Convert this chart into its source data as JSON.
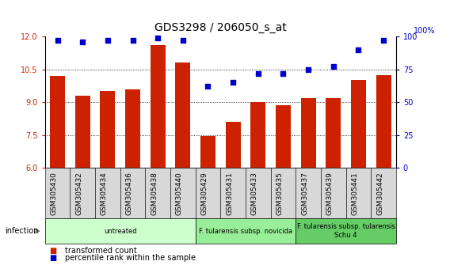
{
  "title": "GDS3298 / 206050_s_at",
  "samples": [
    "GSM305430",
    "GSM305432",
    "GSM305434",
    "GSM305436",
    "GSM305438",
    "GSM305440",
    "GSM305429",
    "GSM305431",
    "GSM305433",
    "GSM305435",
    "GSM305437",
    "GSM305439",
    "GSM305441",
    "GSM305442"
  ],
  "bar_values": [
    10.2,
    9.3,
    9.5,
    9.6,
    11.6,
    10.8,
    7.45,
    8.1,
    9.0,
    8.85,
    9.2,
    9.2,
    10.0,
    10.25
  ],
  "percentile_values": [
    97,
    96,
    97,
    97,
    99,
    97,
    62,
    65,
    72,
    72,
    75,
    77,
    90,
    97
  ],
  "bar_color": "#cc2200",
  "percentile_color": "#0000cc",
  "ylim_left": [
    6,
    12
  ],
  "ylim_right": [
    0,
    100
  ],
  "yticks_left": [
    6,
    7.5,
    9,
    10.5,
    12
  ],
  "yticks_right": [
    0,
    25,
    50,
    75,
    100
  ],
  "groups": [
    {
      "label": "untreated",
      "start": 0,
      "end": 6,
      "color": "#ccffcc"
    },
    {
      "label": "F. tularensis subsp. novicida",
      "start": 6,
      "end": 10,
      "color": "#99ee99"
    },
    {
      "label": "F. tularensis subsp. tularensis\nSchu 4",
      "start": 10,
      "end": 14,
      "color": "#66cc66"
    }
  ],
  "infection_label": "infection",
  "legend_items": [
    {
      "label": "transformed count",
      "color": "#cc2200"
    },
    {
      "label": "percentile rank within the sample",
      "color": "#0000cc"
    }
  ],
  "background_color": "#ffffff",
  "plot_bg_color": "#ffffff",
  "title_fontsize": 10,
  "tick_fontsize": 7,
  "label_fontsize": 7
}
